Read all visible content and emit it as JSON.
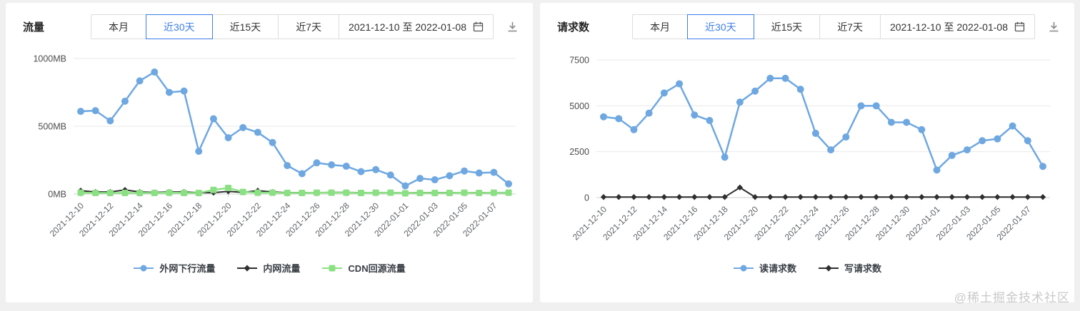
{
  "watermark": "@稀土掘金技术社区",
  "panels": [
    {
      "title": "流量",
      "controls": {
        "buttons": [
          "本月",
          "近30天",
          "近15天",
          "近7天"
        ],
        "selected": "近30天",
        "date_range": "2021-12-10 至 2022-01-08",
        "icons": [
          "calendar-icon",
          "download-icon"
        ]
      }
    },
    {
      "title": "请求数",
      "controls": {
        "buttons": [
          "本月",
          "近30天",
          "近15天",
          "近7天"
        ],
        "selected": "近30天",
        "date_range": "2021-12-10 至 2022-01-08",
        "icons": [
          "calendar-icon",
          "download-icon"
        ]
      }
    }
  ],
  "chart_data": [
    {
      "type": "line",
      "title": "流量",
      "unit": "MB",
      "x": [
        "2021-12-10",
        "2021-12-11",
        "2021-12-12",
        "2021-12-13",
        "2021-12-14",
        "2021-12-15",
        "2021-12-16",
        "2021-12-17",
        "2021-12-18",
        "2021-12-19",
        "2021-12-20",
        "2021-12-21",
        "2021-12-22",
        "2021-12-23",
        "2021-12-24",
        "2021-12-25",
        "2021-12-26",
        "2021-12-27",
        "2021-12-28",
        "2021-12-29",
        "2021-12-30",
        "2021-12-31",
        "2022-01-01",
        "2022-01-02",
        "2022-01-03",
        "2022-01-04",
        "2022-01-05",
        "2022-01-06",
        "2022-01-07",
        "2022-01-08"
      ],
      "xtick_every": 2,
      "series": [
        {
          "name": "外网下行流量",
          "color": "#6fa8e1",
          "marker": "circle",
          "width": 2.5,
          "values": [
            610,
            615,
            540,
            685,
            835,
            900,
            750,
            760,
            315,
            555,
            415,
            490,
            455,
            380,
            210,
            150,
            230,
            215,
            205,
            165,
            180,
            140,
            60,
            115,
            105,
            135,
            170,
            155,
            160,
            75
          ]
        },
        {
          "name": "内网流量",
          "color": "#2f2f2f",
          "marker": "diamond",
          "width": 2,
          "values": [
            25,
            15,
            15,
            30,
            15,
            12,
            15,
            15,
            10,
            10,
            20,
            12,
            25,
            15,
            10,
            10,
            10,
            12,
            12,
            10,
            10,
            10,
            8,
            10,
            10,
            10,
            10,
            10,
            10,
            8
          ]
        },
        {
          "name": "CDN回源流量",
          "color": "#8ce084",
          "marker": "square",
          "width": 2.5,
          "values": [
            10,
            8,
            8,
            8,
            8,
            8,
            10,
            8,
            8,
            30,
            45,
            15,
            10,
            10,
            8,
            8,
            10,
            10,
            10,
            8,
            10,
            10,
            5,
            8,
            8,
            8,
            10,
            8,
            10,
            10
          ]
        }
      ],
      "ylim": [
        0,
        1000
      ],
      "yticks": [
        0,
        500,
        1000
      ],
      "ytick_labels": [
        "0MB",
        "500MB",
        "1000MB"
      ],
      "draw_order": [
        1,
        2,
        0
      ],
      "legend_position": "bottom",
      "grid": "horizontal"
    },
    {
      "type": "line",
      "title": "请求数",
      "unit": "",
      "x": [
        "2021-12-10",
        "2021-12-11",
        "2021-12-12",
        "2021-12-13",
        "2021-12-14",
        "2021-12-15",
        "2021-12-16",
        "2021-12-17",
        "2021-12-18",
        "2021-12-19",
        "2021-12-20",
        "2021-12-21",
        "2021-12-22",
        "2021-12-23",
        "2021-12-24",
        "2021-12-25",
        "2021-12-26",
        "2021-12-27",
        "2021-12-28",
        "2021-12-29",
        "2021-12-30",
        "2021-12-31",
        "2022-01-01",
        "2022-01-02",
        "2022-01-03",
        "2022-01-04",
        "2022-01-05",
        "2022-01-06",
        "2022-01-07",
        "2022-01-08"
      ],
      "xtick_every": 2,
      "series": [
        {
          "name": "读请求数",
          "color": "#6fa8e1",
          "marker": "circle",
          "width": 2.5,
          "values": [
            4400,
            4300,
            3700,
            4600,
            5700,
            6200,
            4500,
            4200,
            2200,
            5200,
            5800,
            6500,
            6500,
            5900,
            3500,
            2600,
            3300,
            5000,
            5000,
            4100,
            4100,
            3700,
            1500,
            2300,
            2600,
            3100,
            3200,
            3900,
            3100,
            1700
          ]
        },
        {
          "name": "写请求数",
          "color": "#2f2f2f",
          "marker": "diamond",
          "width": 2,
          "values": [
            30,
            30,
            30,
            30,
            30,
            30,
            30,
            30,
            30,
            550,
            30,
            30,
            30,
            30,
            30,
            30,
            30,
            30,
            30,
            30,
            30,
            30,
            30,
            30,
            30,
            30,
            30,
            30,
            30,
            30
          ]
        }
      ],
      "ylim": [
        0,
        7500
      ],
      "yticks": [
        0,
        2500,
        5000,
        7500
      ],
      "ytick_labels": [
        "0",
        "2500",
        "5000",
        "7500"
      ],
      "draw_order": [
        1,
        0
      ],
      "legend_position": "bottom",
      "grid": "horizontal"
    }
  ]
}
